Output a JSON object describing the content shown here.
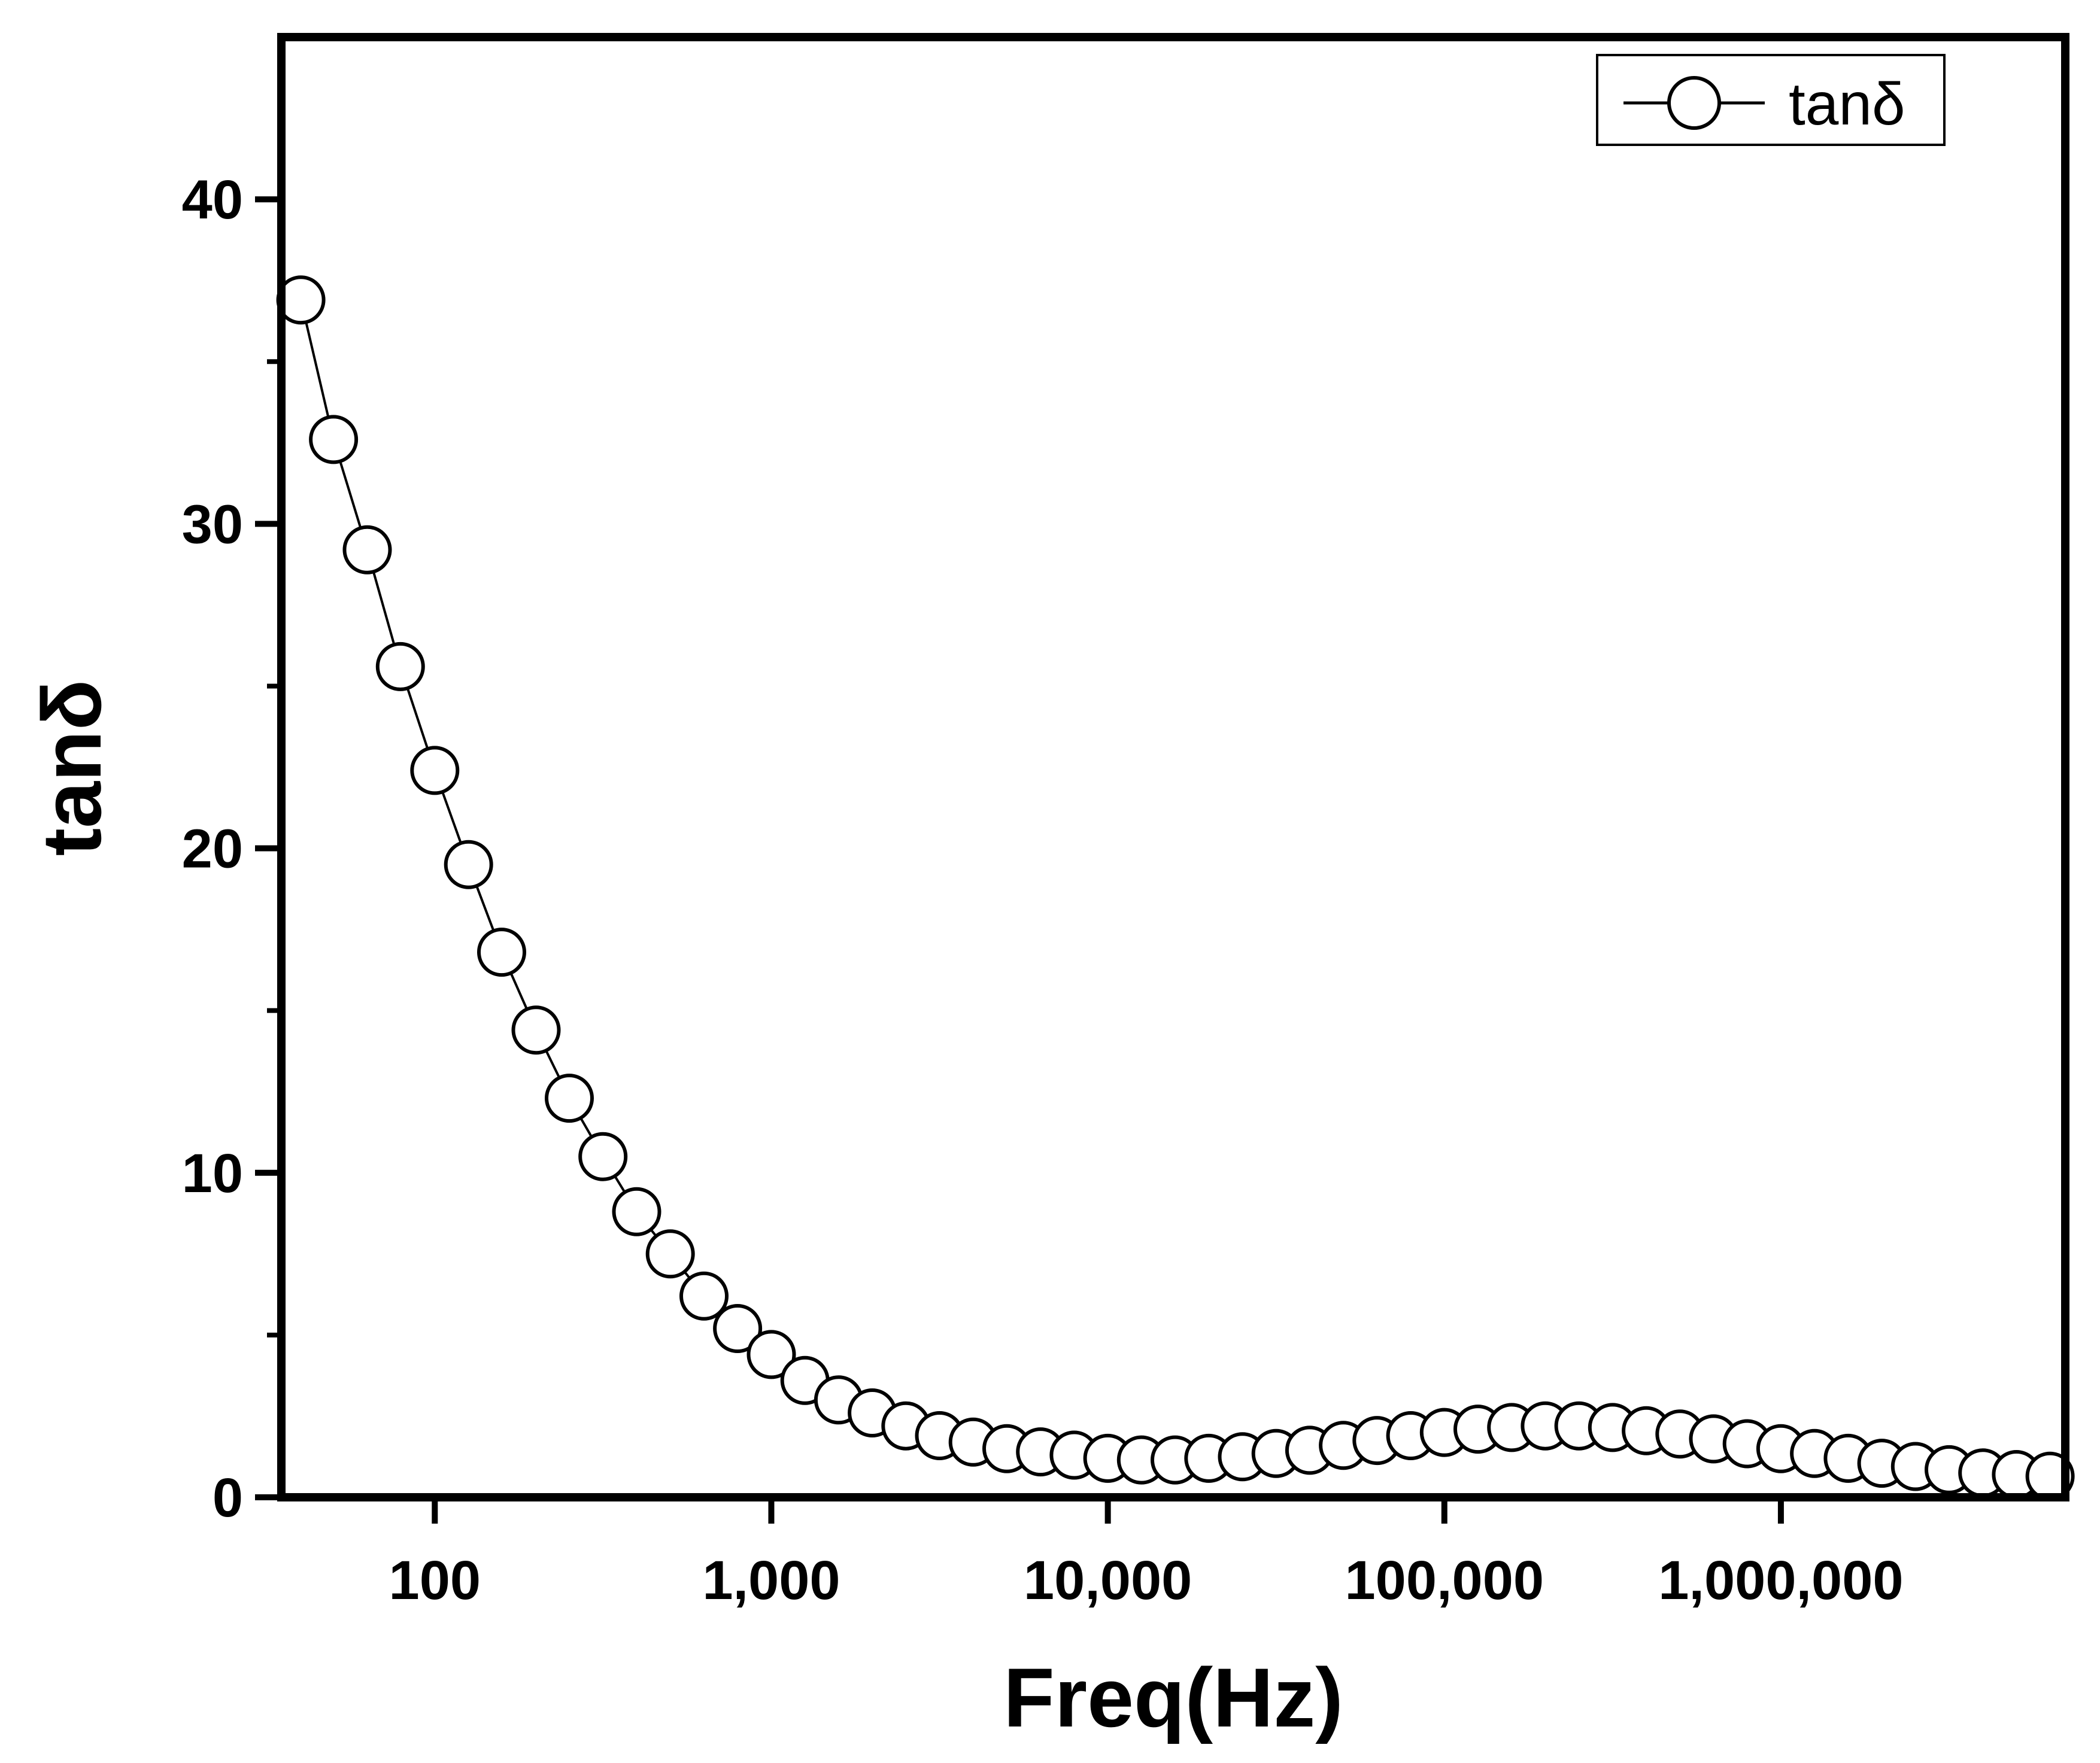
{
  "chart_data": {
    "type": "scatter",
    "xscale": "log",
    "title": "",
    "xlabel": "Freq(Hz)",
    "ylabel": "tanδ",
    "xlim": [
      35,
      7000000
    ],
    "ylim": [
      0,
      45
    ],
    "xticks": [
      100,
      1000,
      10000,
      100000,
      1000000
    ],
    "xtick_labels": [
      "100",
      "1,000",
      "10,000",
      "100,000",
      "1,000,000"
    ],
    "yticks": [
      0,
      10,
      20,
      30,
      40
    ],
    "ytick_labels": [
      "0",
      "10",
      "20",
      "30",
      "40"
    ],
    "grid": false,
    "legend": {
      "position": "top-right",
      "entries": [
        "tanδ"
      ]
    },
    "series": [
      {
        "name": "tanδ",
        "marker": "open-circle",
        "line": true,
        "x": [
          40,
          50,
          63,
          79,
          100,
          126,
          158,
          200,
          251,
          316,
          398,
          501,
          631,
          794,
          1000,
          1259,
          1585,
          1995,
          2512,
          3162,
          3981,
          5012,
          6310,
          7943,
          10000,
          12589,
          15849,
          19953,
          25119,
          31623,
          39811,
          50119,
          63096,
          79433,
          100000,
          125893,
          158489,
          199526,
          251189,
          316228,
          398107,
          501187,
          630957,
          794328,
          1000000,
          1258925,
          1584893,
          1995262,
          2511886,
          3162278,
          3981072,
          5011872,
          6309573
        ],
        "y": [
          36.9,
          32.6,
          29.2,
          25.6,
          22.4,
          19.5,
          16.8,
          14.4,
          12.3,
          10.5,
          8.8,
          7.5,
          6.2,
          5.2,
          4.4,
          3.6,
          3.0,
          2.6,
          2.2,
          1.9,
          1.7,
          1.5,
          1.4,
          1.3,
          1.2,
          1.15,
          1.15,
          1.2,
          1.25,
          1.35,
          1.45,
          1.6,
          1.75,
          1.9,
          2.0,
          2.1,
          2.15,
          2.2,
          2.2,
          2.15,
          2.05,
          1.95,
          1.8,
          1.65,
          1.5,
          1.35,
          1.2,
          1.05,
          0.95,
          0.85,
          0.75,
          0.7,
          0.65
        ]
      }
    ]
  }
}
